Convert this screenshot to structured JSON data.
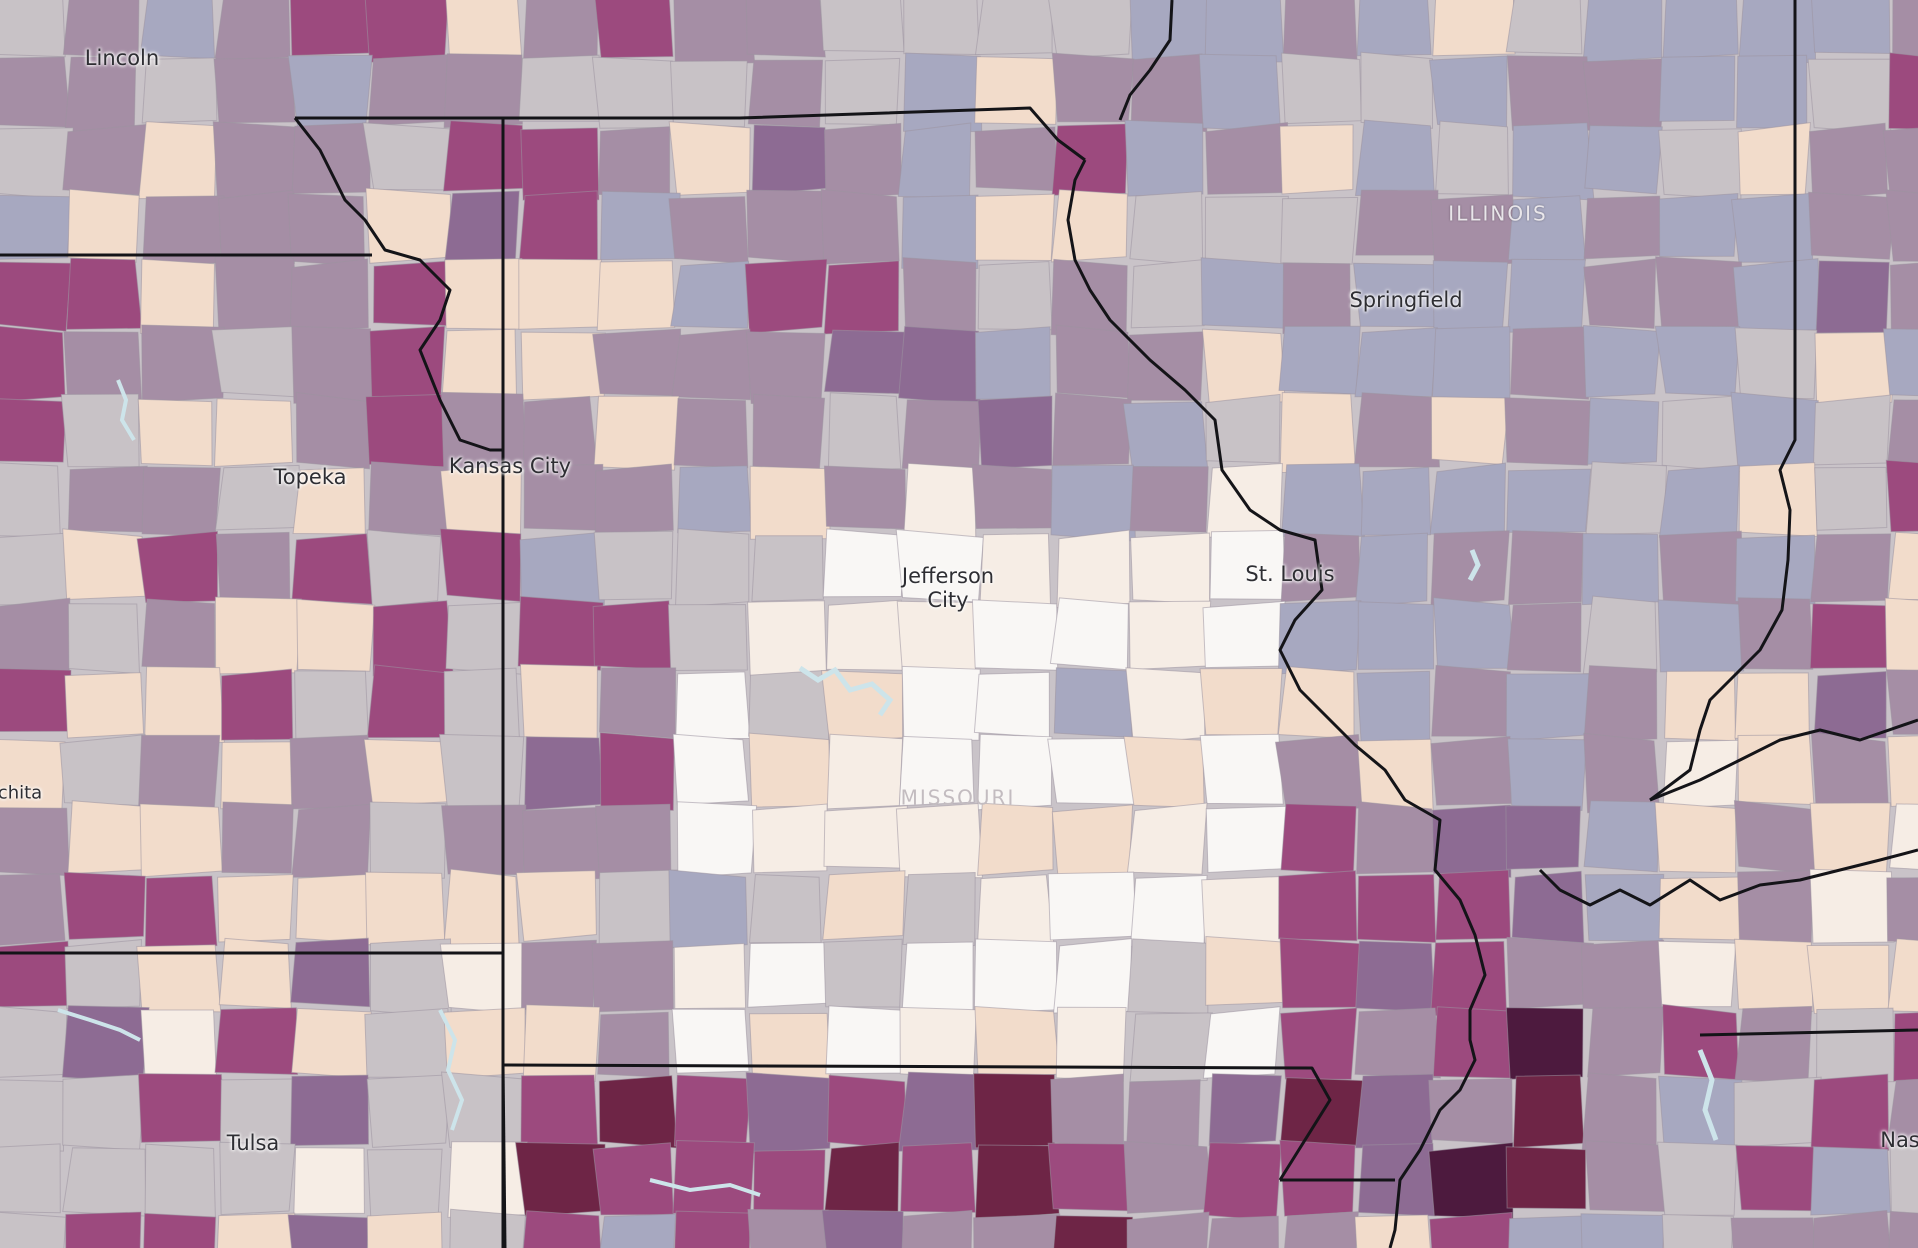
{
  "map": {
    "labels": {
      "lincoln": "Lincoln",
      "kansas_city": "Kansas City",
      "topeka": "Topeka",
      "jefferson_city": "Jefferson\nCity",
      "st_louis": "St. Louis",
      "springfield": "Springfield",
      "tulsa": "Tulsa",
      "wichita": "chita",
      "nashville": "Nas",
      "illinois": "ILLINOIS",
      "missouri": "MISSOURI"
    },
    "palette": {
      "cream": "#f2dccb",
      "light_cream": "#f6ede5",
      "near_white": "#f9f7f5",
      "grey": "#c8c2c6",
      "blue_grey": "#a7a8c0",
      "mauve": "#a58ea5",
      "purple": "#8d6b93",
      "magenta": "#9c4a7e",
      "dark_plum": "#6e2546",
      "deep_plum": "#4d1a3e",
      "water": "#cde4ea",
      "border": "#141418"
    }
  }
}
